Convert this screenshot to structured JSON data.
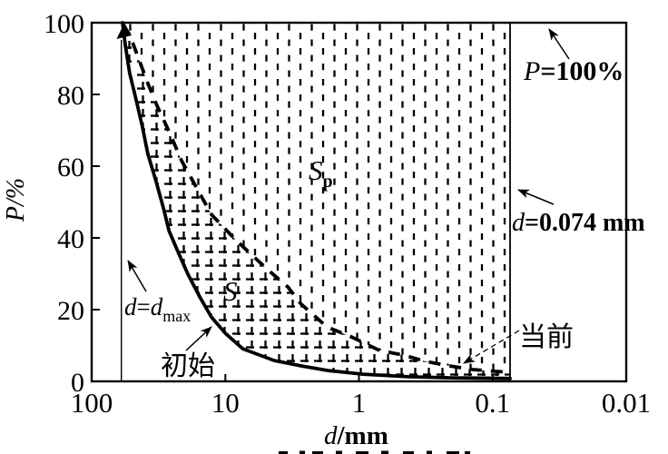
{
  "figure": {
    "background": "#ffffff",
    "ink": "#000000"
  },
  "chart_data": {
    "type": "line",
    "title": "",
    "xlabel": "d/mm",
    "ylabel": "P/%",
    "x_axis": {
      "scale": "log",
      "reversed": true,
      "min": 0.01,
      "max": 100,
      "tick_values": [
        100,
        10,
        1,
        0.1,
        0.01
      ],
      "tick_labels": [
        "100",
        "10",
        "1",
        "0.1",
        "0.01"
      ]
    },
    "y_axis": {
      "min": 0,
      "max": 100,
      "tick_values": [
        0,
        20,
        40,
        60,
        80,
        100
      ],
      "tick_labels": [
        "0",
        "20",
        "40",
        "60",
        "80",
        "100"
      ]
    },
    "grid": false,
    "legend": "none",
    "series": [
      {
        "name": "初始",
        "style": "solid",
        "points": [
          [
            58.8,
            100
          ],
          [
            56,
            93.7
          ],
          [
            52,
            86
          ],
          [
            46.5,
            78.5
          ],
          [
            41.7,
            71
          ],
          [
            38,
            63.4
          ],
          [
            33,
            55.8
          ],
          [
            29,
            48.2
          ],
          [
            26.4,
            42
          ],
          [
            22.3,
            35.6
          ],
          [
            19,
            29.8
          ],
          [
            15.6,
            23.7
          ],
          [
            12.7,
            17.9
          ],
          [
            10,
            13.4
          ],
          [
            7.4,
            9.1
          ],
          [
            4.3,
            5.8
          ],
          [
            2.7,
            4.3
          ],
          [
            1.7,
            3
          ],
          [
            0.93,
            2
          ],
          [
            0.43,
            1.3
          ],
          [
            0.2,
            1
          ],
          [
            0.074,
            0.8
          ]
        ]
      },
      {
        "name": "当前",
        "style": "dashed",
        "points": [
          [
            58.8,
            99.5
          ],
          [
            52,
            96.7
          ],
          [
            45,
            90.4
          ],
          [
            38,
            83.1
          ],
          [
            32.4,
            76.8
          ],
          [
            26,
            69.2
          ],
          [
            21.3,
            61.6
          ],
          [
            16.3,
            53.8
          ],
          [
            12.7,
            46.5
          ],
          [
            8.6,
            39.9
          ],
          [
            6.4,
            35.4
          ],
          [
            4.7,
            30.8
          ],
          [
            3.4,
            26.3
          ],
          [
            2.7,
            21.5
          ],
          [
            2.1,
            17.9
          ],
          [
            1.74,
            15.2
          ],
          [
            1.14,
            12.4
          ],
          [
            0.7,
            8.6
          ],
          [
            0.46,
            7.3
          ],
          [
            0.32,
            5.6
          ],
          [
            0.21,
            4.3
          ],
          [
            0.14,
            3.3
          ],
          [
            0.097,
            2.8
          ],
          [
            0.074,
            2.5
          ]
        ]
      }
    ],
    "reference_lines": [
      {
        "label": "d=dmax",
        "axis": "x",
        "value": 60
      },
      {
        "label": "d=0.074 mm",
        "axis": "x",
        "value": 0.074
      },
      {
        "label": "P=100%",
        "axis": "y",
        "value": 100
      }
    ],
    "regions": [
      {
        "name": "S",
        "hatch": "cross-dashed",
        "bounds": "between initial curve and current curve"
      },
      {
        "name": "Sp",
        "hatch": "vertical-dashed",
        "bounds": "between current curve and d=0.074 mm line up to P=100%"
      }
    ]
  },
  "labels": {
    "y_axis_title": "P/%",
    "x_title_var": "d",
    "x_title_unit": "/mm",
    "p100_var": "P",
    "p100_rest": "=100%",
    "dmax_var1": "d",
    "dmax_eq": "=",
    "dmax_var2": "d",
    "dmax_sub": "max",
    "d0074_var": "d",
    "d0074_rest": "=0.074 mm",
    "region_s": "S",
    "region_sp_main": "S",
    "region_sp_sub": "p",
    "curve_initial": "初始",
    "curve_current": "当前"
  }
}
